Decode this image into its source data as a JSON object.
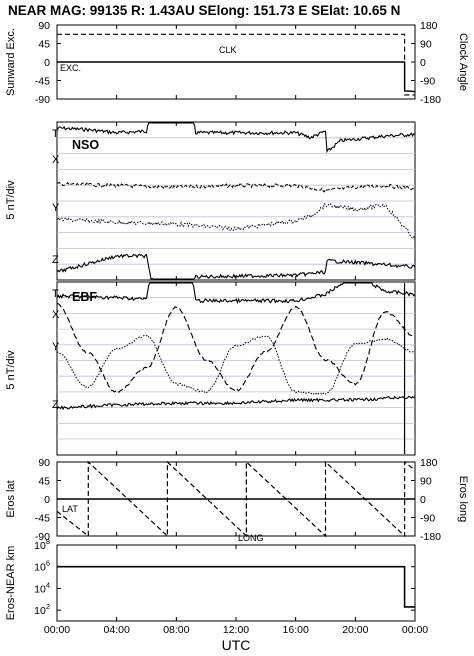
{
  "title": {
    "left": "NEAR MAG: 99135  R: 1.43AU  SElong:  151.73 E  SElat:   10.65 N"
  },
  "x_axis": {
    "label": "UTC",
    "ticks": [
      "00:00",
      "04:00",
      "08:00",
      "12:00",
      "16:00",
      "20:00",
      "00:00"
    ],
    "range_hours": [
      0,
      24
    ]
  },
  "panels": {
    "p1": {
      "ylabel_left": "Sunward Exc.",
      "ylabel_right": "Clock Angle",
      "left_ticks": [
        "90",
        "45",
        "0",
        "-45",
        "-90"
      ],
      "right_ticks": [
        "180",
        "90",
        "0",
        "-90",
        "-180"
      ],
      "clk_label": "CLK",
      "exc_label": "EXC."
    },
    "p2": {
      "ylabel": "5 nT/div",
      "tag": "NSO",
      "traces": [
        "T",
        "X",
        "Y",
        "Z"
      ]
    },
    "p3": {
      "ylabel": "5 nT/div",
      "tag": "EBF",
      "traces": [
        "T",
        "X",
        "Y",
        "Z"
      ]
    },
    "p4": {
      "ylabel_left": "Eros lat",
      "ylabel_right": "Eros long",
      "left_ticks": [
        "90",
        "45",
        "0",
        "-45",
        "-90"
      ],
      "right_ticks": [
        "180",
        "90",
        "0",
        "-90",
        "-180"
      ],
      "lat_label": "LAT",
      "long_label": "LONG"
    },
    "p5": {
      "ylabel": "Eros-NEAR km",
      "ticks": [
        "10^8",
        "10^6",
        "10^4",
        "10^2"
      ]
    }
  },
  "chart_data": [
    {
      "type": "line",
      "title": "",
      "xlabel": "UTC",
      "ylabel": "Sunward Exc.",
      "ylabel_right": "Clock Angle",
      "ylim": [
        -90,
        90
      ],
      "ylim_right": [
        -180,
        180
      ],
      "series": [
        {
          "name": "CLK",
          "x": [
            0,
            23.3,
            23.3,
            24
          ],
          "y": [
            135,
            135,
            -160,
            -160
          ]
        },
        {
          "name": "EXC.",
          "x": [
            0,
            23.3,
            23.3,
            24
          ],
          "y": [
            0,
            0,
            -70,
            -72
          ]
        }
      ]
    },
    {
      "type": "line",
      "ylabel": "5 nT/div",
      "series": [
        {
          "name": "T",
          "x": [
            0,
            2,
            4,
            6,
            6.3,
            9,
            9.3,
            16,
            17,
            18,
            18.1,
            19,
            22,
            24
          ],
          "y": [
            4.5,
            4.4,
            4.2,
            4.3,
            6.0,
            6.1,
            4.2,
            4.2,
            3.9,
            4.3,
            3.0,
            3.7,
            4.0,
            4.1
          ]
        },
        {
          "name": "X",
          "x": [
            0,
            4,
            8,
            12,
            16,
            18,
            20,
            22,
            24
          ],
          "y": [
            1.0,
            0.9,
            0.8,
            0.9,
            0.9,
            0.6,
            0.8,
            0.9,
            0.7
          ]
        },
        {
          "name": "Y",
          "x": [
            0,
            4,
            8,
            12,
            16,
            17,
            18,
            20,
            22,
            24
          ],
          "y": [
            -1.2,
            -1.4,
            -1.5,
            -1.8,
            -1.3,
            -1.0,
            -0.3,
            -0.6,
            -0.3,
            -2.5
          ]
        },
        {
          "name": "Z",
          "x": [
            0,
            2,
            4,
            6,
            6.3,
            9,
            9.3,
            16,
            18,
            18.1,
            20,
            24
          ],
          "y": [
            -4.5,
            -4.0,
            -3.5,
            -3.5,
            -5.0,
            -5.2,
            -4.8,
            -4.7,
            -4.5,
            -3.8,
            -3.9,
            -4.2
          ]
        }
      ]
    },
    {
      "type": "line",
      "ylabel": "5 nT/div",
      "series": [
        {
          "name": "T",
          "x": [
            0,
            4,
            6,
            6.3,
            9,
            9.3,
            16,
            18,
            20,
            22,
            24
          ],
          "y": [
            4.5,
            4.4,
            4.3,
            6.0,
            6.0,
            4.2,
            4.2,
            4.6,
            5.8,
            4.8,
            4.6
          ]
        },
        {
          "name": "X",
          "x": [
            0,
            2,
            4,
            6,
            8,
            10,
            12,
            14,
            16,
            18,
            20,
            22,
            24
          ],
          "y": [
            4.0,
            1.0,
            -1.5,
            0.0,
            3.8,
            0.5,
            -1.4,
            1.0,
            3.8,
            0.5,
            -1.0,
            3.5,
            2.0
          ]
        },
        {
          "name": "Y",
          "x": [
            0,
            2,
            4,
            6,
            8,
            10,
            12,
            14,
            16,
            18,
            20,
            22,
            24
          ],
          "y": [
            1.0,
            -1.2,
            1.2,
            2.0,
            -1.0,
            -1.5,
            1.4,
            2.0,
            -1.5,
            -1.6,
            1.5,
            1.8,
            1.0
          ]
        },
        {
          "name": "Z",
          "x": [
            0,
            4,
            8,
            12,
            16,
            20,
            24
          ],
          "y": [
            -2.5,
            -2.3,
            -2.2,
            -2.2,
            -2.0,
            -2.0,
            -1.8
          ]
        }
      ]
    },
    {
      "type": "line",
      "ylabel": "Eros lat",
      "ylabel_right": "Eros long",
      "ylim": [
        -90,
        90
      ],
      "ylim_right": [
        -180,
        180
      ],
      "series": [
        {
          "name": "LAT",
          "x": [
            0,
            24
          ],
          "y": [
            0,
            0
          ]
        },
        {
          "name": "LONG",
          "x": [
            0,
            2.1,
            2.1,
            7.4,
            7.4,
            12.7,
            12.7,
            18.0,
            18.0,
            23.3,
            23.3,
            24
          ],
          "y": [
            -60,
            -180,
            180,
            -180,
            180,
            -180,
            180,
            -180,
            180,
            -180,
            180,
            140
          ]
        }
      ]
    },
    {
      "type": "line",
      "ylabel": "Eros-NEAR km",
      "yscale": "log",
      "ylim": [
        10,
        100000000
      ],
      "series": [
        {
          "name": "",
          "x": [
            0,
            23.3,
            23.3,
            24
          ],
          "y": [
            1000000,
            1000000,
            200,
            200
          ]
        }
      ]
    }
  ]
}
